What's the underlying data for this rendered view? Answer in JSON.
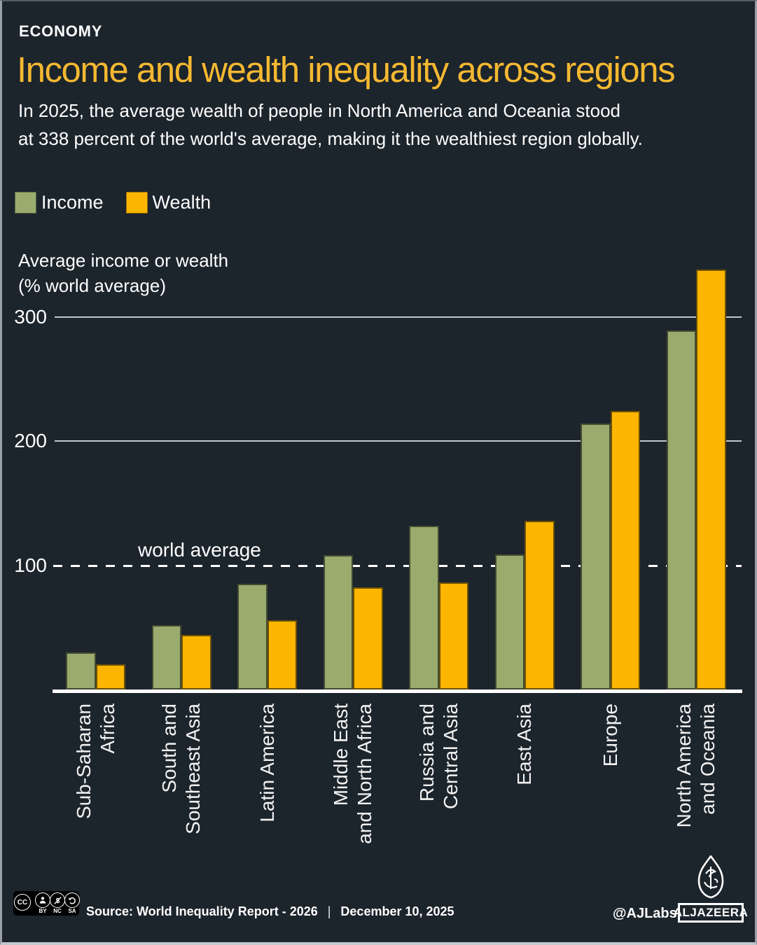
{
  "header": {
    "kicker": "ECONOMY",
    "title": "Income and wealth inequality across regions",
    "subtitle_line1": "In 2025, the average wealth of people in North America and Oceania stood",
    "subtitle_line2": "at 338 percent of the world's average, making it the wealthiest region globally."
  },
  "legend": {
    "income_label": "Income",
    "wealth_label": "Wealth"
  },
  "axis_title": {
    "line1": "Average income or wealth",
    "line2": "(% world average)"
  },
  "chart_data": {
    "type": "bar",
    "title": "Income and wealth inequality across regions",
    "ylabel": "Average income or wealth (% world average)",
    "xlabel": "",
    "ylim": [
      0,
      345
    ],
    "yticks": [
      100,
      200,
      300
    ],
    "grid": true,
    "legend_position": "top-left",
    "reference_line": {
      "value": 100,
      "label": "world average",
      "style": "dashed"
    },
    "categories": [
      "Sub-Saharan Africa",
      "South and Southeast Asia",
      "Latin America",
      "Middle East and North Africa",
      "Russia and Central Asia",
      "East Asia",
      "Europe",
      "North America and Oceania"
    ],
    "category_label_lines": [
      [
        "Sub-Saharan",
        "Africa"
      ],
      [
        "South and",
        "Southeast Asia"
      ],
      [
        "Latin America"
      ],
      [
        "Middle East",
        "and North Africa"
      ],
      [
        "Russia and",
        "Central Asia"
      ],
      [
        "East Asia"
      ],
      [
        "Europe"
      ],
      [
        "North America",
        "and Oceania"
      ]
    ],
    "series": [
      {
        "name": "Income",
        "color": "#9aab6e",
        "values": [
          30,
          52,
          85,
          108,
          132,
          109,
          214,
          289
        ]
      },
      {
        "name": "Wealth",
        "color": "#fdb600",
        "values": [
          20,
          44,
          56,
          82,
          86,
          136,
          224,
          338
        ]
      }
    ]
  },
  "footer": {
    "license": {
      "cc": "CC",
      "terms": [
        "BY",
        "NC",
        "SA"
      ]
    },
    "source": "Source: World Inequality Report - 2026",
    "separator": "|",
    "date": "December 10, 2025",
    "credit": "@AJLabs",
    "brand": "ALJAZEERA"
  },
  "colors": {
    "background": "#1c242c",
    "title_accent": "#f4b831",
    "income": "#9aab6e",
    "wealth": "#fdb600",
    "text": "#ffffff",
    "gridline": "#c2c6c8"
  }
}
